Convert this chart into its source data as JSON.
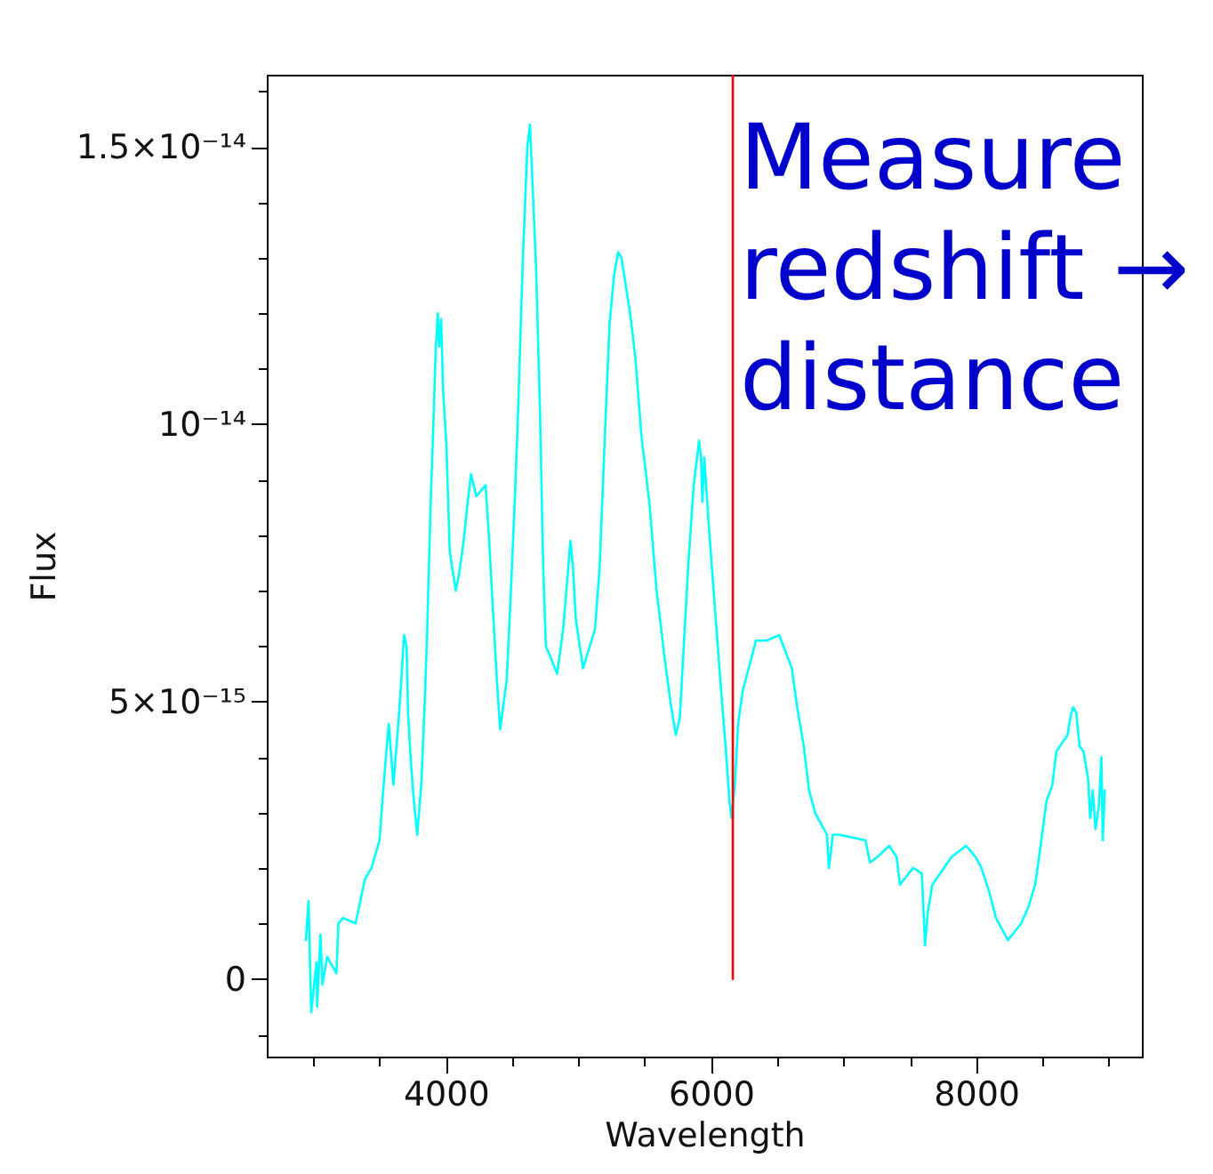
{
  "chart_data": {
    "type": "line",
    "xlabel": "Wavelength",
    "ylabel": "Flux",
    "xlim": [
      2650,
      9250
    ],
    "ylim": [
      -1.4e-15,
      1.63e-14
    ],
    "xticks": [
      {
        "value": 3000,
        "label": null
      },
      {
        "value": 3500,
        "label": null
      },
      4000,
      {
        "value": 4500,
        "label": null
      },
      {
        "value": 5000,
        "label": null
      },
      {
        "value": 5500,
        "label": null
      },
      6000,
      {
        "value": 6500,
        "label": null
      },
      {
        "value": 7000,
        "label": null
      },
      {
        "value": 7500,
        "label": null
      },
      8000,
      {
        "value": 8500,
        "label": null
      },
      {
        "value": 9000,
        "label": null
      }
    ],
    "yticks": [
      {
        "value": -1e-15,
        "label": null
      },
      0,
      {
        "value": 1e-15,
        "label": null
      },
      {
        "value": 2e-15,
        "label": null
      },
      {
        "value": 3e-15,
        "label": null
      },
      {
        "value": 4e-15,
        "label": null
      },
      {
        "value": 5e-15,
        "label": "5×10⁻¹⁵"
      },
      {
        "value": 6e-15,
        "label": null
      },
      {
        "value": 7e-15,
        "label": null
      },
      {
        "value": 8e-15,
        "label": null
      },
      {
        "value": 9e-15,
        "label": null
      },
      {
        "value": 1e-14,
        "label": "10⁻¹⁴"
      },
      {
        "value": 1.1e-14,
        "label": null
      },
      {
        "value": 1.2e-14,
        "label": null
      },
      {
        "value": 1.3e-14,
        "label": null
      },
      {
        "value": 1.4e-14,
        "label": null
      },
      {
        "value": 1.5e-14,
        "label": "1.5×10⁻¹⁴"
      },
      {
        "value": 1.6e-14,
        "label": null
      }
    ],
    "series": [
      {
        "color": "#00ffff",
        "x": [
          2945,
          2965,
          2985,
          3025,
          3030,
          3055,
          3070,
          3105,
          3175,
          3190,
          3225,
          3320,
          3390,
          3440,
          3500,
          3525,
          3545,
          3570,
          3605,
          3645,
          3665,
          3685,
          3705,
          3715,
          3740,
          3760,
          3785,
          3815,
          3840,
          3860,
          3885,
          3905,
          3925,
          3940,
          3950,
          3965,
          3980,
          4005,
          4030,
          4075,
          4100,
          4135,
          4165,
          4190,
          4230,
          4300,
          4325,
          4350,
          4385,
          4410,
          4460,
          4495,
          4520,
          4545,
          4580,
          4615,
          4635,
          4680,
          4710,
          4735,
          4755,
          4790,
          4840,
          4885,
          4920,
          4940,
          4960,
          4980,
          5035,
          5125,
          5160,
          5200,
          5235,
          5270,
          5300,
          5325,
          5390,
          5430,
          5475,
          5535,
          5590,
          5655,
          5700,
          5735,
          5765,
          5795,
          5830,
          5870,
          5910,
          5925,
          5935,
          5950,
          5980,
          6020,
          6070,
          6110,
          6140,
          6155,
          6180,
          6205,
          6240,
          6340,
          6420,
          6515,
          6610,
          6650,
          6700,
          6740,
          6785,
          6830,
          6875,
          6890,
          6920,
          6965,
          7165,
          7200,
          7255,
          7345,
          7400,
          7425,
          7525,
          7590,
          7615,
          7635,
          7670,
          7815,
          7925,
          7995,
          8040,
          8095,
          8150,
          8195,
          8240,
          8340,
          8395,
          8445,
          8475,
          8530,
          8575,
          8605,
          8690,
          8710,
          8730,
          8755,
          8780,
          8810,
          8845,
          8860,
          8880,
          8900,
          8925,
          8945,
          8955,
          8970
        ],
        "values": [
          7e-16,
          1.4e-15,
          -6e-16,
          3e-16,
          -5e-16,
          8e-16,
          -1e-16,
          4e-16,
          1e-16,
          1e-15,
          1.1e-15,
          1e-15,
          1.8e-15,
          2e-15,
          2.5e-15,
          3.3e-15,
          3.9e-15,
          4.6e-15,
          3.5e-15,
          4.7e-15,
          5.4e-15,
          6.2e-15,
          6e-15,
          4.8e-15,
          3.8e-15,
          3.2e-15,
          2.6e-15,
          3.5e-15,
          4.9e-15,
          6.3e-15,
          8.5e-15,
          9.9e-15,
          1.14e-14,
          1.2e-14,
          1.14e-14,
          1.19e-14,
          1.06e-14,
          9.6e-15,
          7.7e-15,
          7e-15,
          7.3e-15,
          7.9e-15,
          8.6e-15,
          9.1e-15,
          8.7e-15,
          8.9e-15,
          8e-15,
          6.9e-15,
          5.4e-15,
          4.5e-15,
          5.4e-15,
          7.2e-15,
          8.6e-15,
          1.02e-14,
          1.29e-14,
          1.5e-14,
          1.54e-14,
          1.29e-14,
          1.03e-14,
          7.4e-15,
          6e-15,
          5.8e-15,
          5.5e-15,
          6.3e-15,
          7.3e-15,
          7.9e-15,
          7.4e-15,
          6.5e-15,
          5.6e-15,
          6.3e-15,
          7.4e-15,
          9.8e-15,
          1.18e-14,
          1.27e-14,
          1.31e-14,
          1.3e-14,
          1.2e-14,
          1.12e-14,
          9.8e-15,
          8.6e-15,
          7e-15,
          5.7e-15,
          4.9e-15,
          4.4e-15,
          4.7e-15,
          6e-15,
          7.5e-15,
          8.9e-15,
          9.7e-15,
          9.4e-15,
          8.6e-15,
          9.4e-15,
          8.3e-15,
          7e-15,
          5.4e-15,
          4.2e-15,
          3.2e-15,
          2.9e-15,
          3.5e-15,
          4.6e-15,
          5.2e-15,
          6.1e-15,
          6.1e-15,
          6.2e-15,
          5.6e-15,
          4.9e-15,
          4.2e-15,
          3.4e-15,
          3e-15,
          2.8e-15,
          2.6e-15,
          2e-15,
          2.6e-15,
          2.6e-15,
          2.5e-15,
          2.1e-15,
          2.2e-15,
          2.4e-15,
          2.2e-15,
          1.7e-15,
          2e-15,
          1.9e-15,
          6e-16,
          1.2e-15,
          1.7e-15,
          2.2e-15,
          2.4e-15,
          2.2e-15,
          2e-15,
          1.6e-15,
          1.1e-15,
          9e-16,
          7e-16,
          1e-15,
          1.3e-15,
          1.7e-15,
          2.2e-15,
          3.2e-15,
          3.5e-15,
          4.1e-15,
          4.4e-15,
          4.7e-15,
          4.9e-15,
          4.8e-15,
          4.2e-15,
          4.1e-15,
          3.6e-15,
          2.9e-15,
          3.4e-15,
          2.7e-15,
          3.1e-15,
          4e-15,
          2.5e-15,
          3.4e-15
        ]
      },
      {
        "color": "#ff0000",
        "x": [
          6165,
          6165
        ],
        "values": [
          0,
          1.63e-14
        ]
      }
    ],
    "annotations": [
      "Measure\nredshift →\ndistance"
    ]
  }
}
